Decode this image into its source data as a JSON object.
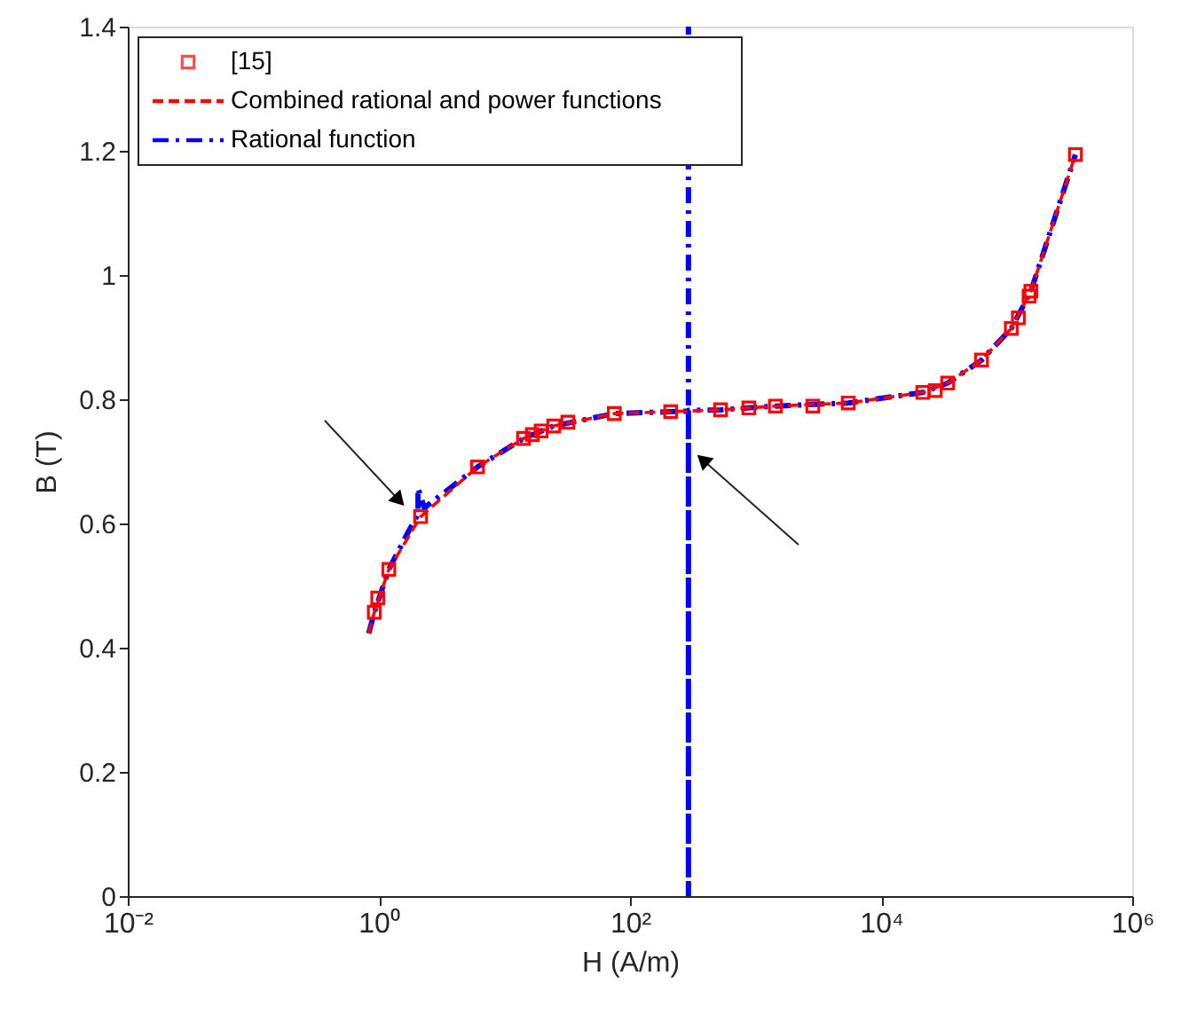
{
  "chart_data": {
    "type": "line",
    "xlabel": "H (A/m)",
    "ylabel": "B (T)",
    "log": "x",
    "xlim": [
      0.01,
      1000000
    ],
    "xticks": [
      {
        "value": 0.01,
        "label": "10⁻²"
      },
      {
        "value": 1,
        "label": "10⁰"
      },
      {
        "value": 100,
        "label": "10²"
      },
      {
        "value": 10000,
        "label": "10⁴"
      },
      {
        "value": 1000000,
        "label": "10⁶"
      }
    ],
    "ylim": [
      0,
      1.4
    ],
    "yticks": [
      0,
      0.2,
      0.4,
      0.6,
      0.8,
      1,
      1.2,
      1.4
    ],
    "grid": false,
    "legend": "top left",
    "series": [
      {
        "name": "[15]",
        "type": "scatter",
        "marker": "square",
        "color": "#ff0000",
        "x": [
          0.92,
          0.98,
          1.2,
          2.15,
          6.1,
          14.2,
          16.7,
          19.6,
          24.7,
          32,
          75,
          211,
          526,
          885,
          1440,
          2860,
          5480,
          21500,
          27000,
          33900,
          63000,
          109000,
          124000,
          151000,
          156000,
          353000
        ],
        "values": [
          0.457,
          0.48,
          0.526,
          0.611,
          0.691,
          0.737,
          0.743,
          0.749,
          0.757,
          0.763,
          0.777,
          0.78,
          0.783,
          0.786,
          0.789,
          0.789,
          0.794,
          0.811,
          0.814,
          0.826,
          0.863,
          0.914,
          0.931,
          0.966,
          0.974,
          1.194
        ]
      },
      {
        "name": "Combined rational and power functions",
        "line_style": "dashed",
        "color": "#ff0000",
        "x": [
          0.83,
          0.92,
          1.2,
          2.15,
          6.1,
          14.2,
          24.7,
          75,
          211,
          526,
          1440,
          5480,
          21500,
          33900,
          63000,
          109000,
          156000,
          353000
        ],
        "values": [
          0.423,
          0.457,
          0.526,
          0.611,
          0.691,
          0.737,
          0.757,
          0.777,
          0.78,
          0.783,
          0.789,
          0.794,
          0.811,
          0.826,
          0.863,
          0.914,
          0.974,
          1.194
        ]
      },
      {
        "name": "Rational function",
        "type": "line",
        "line_style": "dashdot",
        "color": "#0000ff",
        "x": [
          0.83,
          0.92,
          1.2,
          1.7,
          2.05,
          2.05,
          2.3,
          6.1,
          14.2,
          24.7,
          75,
          211,
          292,
          292,
          292,
          292,
          526,
          1440,
          5480,
          21500,
          33900,
          63000,
          109000,
          156000,
          353000
        ],
        "values": [
          0.423,
          0.457,
          0.526,
          0.585,
          0.615,
          0.657,
          0.625,
          0.691,
          0.737,
          0.757,
          0.777,
          0.78,
          0.781,
          1.4,
          0,
          0.782,
          0.783,
          0.789,
          0.794,
          0.811,
          0.826,
          0.863,
          0.914,
          0.974,
          1.194
        ]
      }
    ]
  }
}
